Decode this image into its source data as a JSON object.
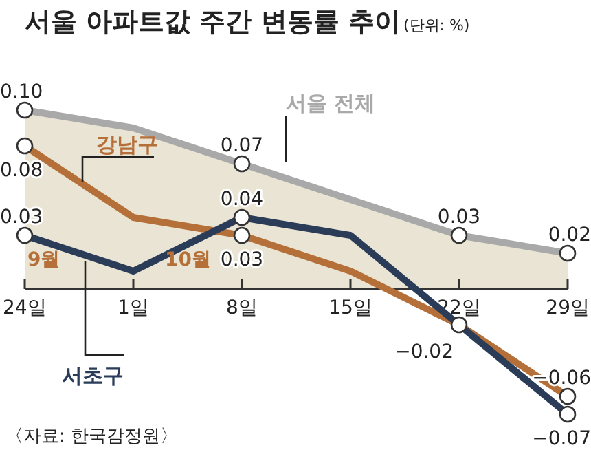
{
  "chart_data": {
    "type": "line",
    "title": "서울 아파트값 주간 변동률 추이",
    "subtitle": "(단위: %)",
    "categories": [
      "24일",
      "1일",
      "8일",
      "15일",
      "22일",
      "29일"
    ],
    "series": [
      {
        "name": "서울 전체",
        "type": "area",
        "color": "#a9a9a9",
        "values": [
          0.1,
          0.09,
          0.07,
          0.05,
          0.03,
          0.02
        ],
        "value_labels": [
          "0.10",
          null,
          "0.07",
          null,
          "0.03",
          "0.02"
        ]
      },
      {
        "name": "강남구",
        "color": "#b5703a",
        "values": [
          0.08,
          0.04,
          0.03,
          0.01,
          -0.02,
          -0.06
        ],
        "value_labels": [
          "0.08",
          null,
          "0.03",
          null,
          null,
          "−0.06"
        ]
      },
      {
        "name": "서초구",
        "color": "#2a3c58",
        "values": [
          0.03,
          0.01,
          0.04,
          0.03,
          -0.02,
          -0.07
        ],
        "value_labels": [
          "0.03",
          null,
          "0.04",
          null,
          "−0.02",
          "−0.07"
        ]
      }
    ],
    "marker": "circle",
    "annotations": [
      "9월",
      "10월",
      "〈자료: 한국감정원〉"
    ]
  }
}
